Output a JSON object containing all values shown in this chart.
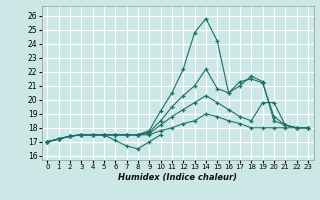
{
  "xlabel": "Humidex (Indice chaleur)",
  "xlim": [
    -0.5,
    23.5
  ],
  "ylim": [
    15.7,
    26.7
  ],
  "yticks": [
    16,
    17,
    18,
    19,
    20,
    21,
    22,
    23,
    24,
    25,
    26
  ],
  "xticks": [
    0,
    1,
    2,
    3,
    4,
    5,
    6,
    7,
    8,
    9,
    10,
    11,
    12,
    13,
    14,
    15,
    16,
    17,
    18,
    19,
    20,
    21,
    22,
    23
  ],
  "background_color": "#cce8e6",
  "grid_color": "#ffffff",
  "line_color": "#1a7068",
  "lines": [
    {
      "x": [
        0,
        1,
        2,
        3,
        4,
        5,
        6,
        7,
        8,
        9,
        10
      ],
      "y": [
        17.0,
        17.2,
        17.4,
        17.5,
        17.5,
        17.5,
        17.1,
        16.7,
        16.5,
        17.0,
        17.5
      ]
    },
    {
      "x": [
        0,
        1,
        2,
        3,
        4,
        5,
        6,
        7,
        8,
        9,
        10,
        11,
        12,
        13,
        14,
        15,
        16,
        17,
        18,
        19,
        20,
        21,
        22,
        23
      ],
      "y": [
        17.0,
        17.2,
        17.4,
        17.5,
        17.5,
        17.5,
        17.5,
        17.5,
        17.5,
        17.5,
        17.8,
        18.0,
        18.3,
        18.5,
        19.0,
        18.8,
        18.5,
        18.3,
        18.0,
        18.0,
        18.0,
        18.0,
        18.0,
        18.0
      ]
    },
    {
      "x": [
        0,
        1,
        2,
        3,
        4,
        5,
        6,
        7,
        8,
        9,
        10,
        11,
        12,
        13,
        14,
        15,
        16,
        17,
        18,
        19,
        20,
        21,
        22,
        23
      ],
      "y": [
        17.0,
        17.2,
        17.4,
        17.5,
        17.5,
        17.5,
        17.5,
        17.5,
        17.5,
        17.6,
        18.2,
        18.8,
        19.3,
        19.8,
        20.3,
        19.8,
        19.3,
        18.8,
        18.5,
        19.8,
        19.8,
        18.2,
        18.0,
        18.0
      ]
    },
    {
      "x": [
        0,
        1,
        2,
        3,
        4,
        5,
        6,
        7,
        8,
        9,
        10,
        11,
        12,
        13,
        14,
        15,
        16,
        17,
        18,
        19,
        20,
        21,
        22,
        23
      ],
      "y": [
        17.0,
        17.2,
        17.4,
        17.5,
        17.5,
        17.5,
        17.5,
        17.5,
        17.5,
        17.7,
        18.5,
        19.5,
        20.3,
        21.0,
        22.2,
        20.8,
        20.5,
        21.3,
        21.5,
        21.2,
        18.8,
        18.2,
        18.0,
        18.0
      ]
    },
    {
      "x": [
        0,
        1,
        2,
        3,
        4,
        5,
        6,
        7,
        8,
        9,
        10,
        11,
        12,
        13,
        14,
        15,
        16,
        17,
        18,
        19,
        20,
        21,
        22,
        23
      ],
      "y": [
        17.0,
        17.2,
        17.4,
        17.5,
        17.5,
        17.5,
        17.5,
        17.5,
        17.5,
        17.8,
        19.2,
        20.5,
        22.2,
        24.8,
        25.8,
        24.2,
        20.5,
        21.0,
        21.7,
        21.3,
        18.5,
        18.2,
        18.0,
        18.0
      ]
    }
  ]
}
